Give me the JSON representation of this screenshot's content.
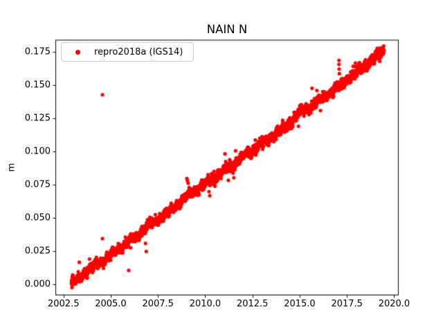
{
  "chart_data": {
    "type": "scatter",
    "title": "NAIN N",
    "xlabel": "",
    "ylabel": "m",
    "background_color": "#ffffff",
    "grid": false,
    "legend": {
      "label": "repro2018a (IGS14)",
      "marker": "dot-icon",
      "marker_color": "#ff0000",
      "location": "upper-left",
      "border_color": "#cccccc"
    },
    "xlim": [
      2002.07,
      2020.24
    ],
    "ylim": [
      -0.0084,
      0.184
    ],
    "x_ticks": [
      2002.5,
      2005.0,
      2007.5,
      2010.0,
      2012.5,
      2015.0,
      2017.5,
      2020.0
    ],
    "x_tick_labels": [
      "2002.5",
      "2005.0",
      "2007.5",
      "2010.0",
      "2012.5",
      "2015.0",
      "2017.5",
      "2020.0"
    ],
    "y_ticks": [
      0.0,
      0.025,
      0.05,
      0.075,
      0.1,
      0.125,
      0.15,
      0.175
    ],
    "y_tick_labels": [
      "0.000",
      "0.025",
      "0.050",
      "0.075",
      "0.100",
      "0.125",
      "0.150",
      "0.175"
    ],
    "series": [
      {
        "name": "repro2018a (IGS14)",
        "color": "#ff0000",
        "marker": "dot",
        "marker_px": 5.2,
        "x_start": 2002.92,
        "x_end": 2019.45,
        "slope_m_per_yr": 0.0106,
        "points_per_year": 200,
        "noise_sd_m": 0.0016,
        "seasonal_amp_m": 0.001,
        "wobble_amp_m": 0.0011,
        "wobble_period_yr": 0.31,
        "stray_rate": 0.012,
        "seed": 42,
        "trend_anchors": [
          [
            2002.92,
            0.0005
          ],
          [
            2003.5,
            0.0068
          ],
          [
            2004.0,
            0.0125
          ],
          [
            2004.5,
            0.0168
          ],
          [
            2005.0,
            0.0215
          ],
          [
            2005.5,
            0.0272
          ],
          [
            2006.0,
            0.0325
          ],
          [
            2006.5,
            0.038
          ],
          [
            2007.0,
            0.0435
          ],
          [
            2007.5,
            0.0485
          ],
          [
            2008.0,
            0.0537
          ],
          [
            2008.5,
            0.0595
          ],
          [
            2009.0,
            0.0662
          ],
          [
            2009.5,
            0.0706
          ],
          [
            2010.0,
            0.0752
          ],
          [
            2010.5,
            0.0803
          ],
          [
            2011.0,
            0.0856
          ],
          [
            2011.5,
            0.0905
          ],
          [
            2012.0,
            0.0962
          ],
          [
            2012.5,
            0.1008
          ],
          [
            2013.0,
            0.1058
          ],
          [
            2013.5,
            0.1105
          ],
          [
            2014.0,
            0.1152
          ],
          [
            2014.5,
            0.1222
          ],
          [
            2015.0,
            0.1298
          ],
          [
            2015.3,
            0.1318
          ],
          [
            2015.5,
            0.1332
          ],
          [
            2016.0,
            0.1382
          ],
          [
            2016.5,
            0.1432
          ],
          [
            2017.0,
            0.1482
          ],
          [
            2017.5,
            0.1535
          ],
          [
            2018.0,
            0.1592
          ],
          [
            2018.5,
            0.1648
          ],
          [
            2019.0,
            0.1706
          ],
          [
            2019.45,
            0.1762
          ]
        ]
      }
    ],
    "outliers": [
      [
        2004.56,
        0.1426
      ],
      [
        2004.56,
        0.0343
      ],
      [
        2003.76,
        0.0047
      ],
      [
        2005.95,
        0.0104
      ],
      [
        2006.84,
        0.0307
      ],
      [
        2006.88,
        0.0246
      ],
      [
        2009.03,
        0.0796
      ],
      [
        2009.06,
        0.0778
      ],
      [
        2009.1,
        0.076
      ],
      [
        2010.2,
        0.0697
      ],
      [
        2010.24,
        0.0666
      ],
      [
        2017.08,
        0.1685
      ],
      [
        2017.08,
        0.1655
      ],
      [
        2017.09,
        0.162
      ],
      [
        2017.1,
        0.1585
      ],
      [
        2017.95,
        0.1665
      ],
      [
        2017.97,
        0.164
      ]
    ]
  }
}
